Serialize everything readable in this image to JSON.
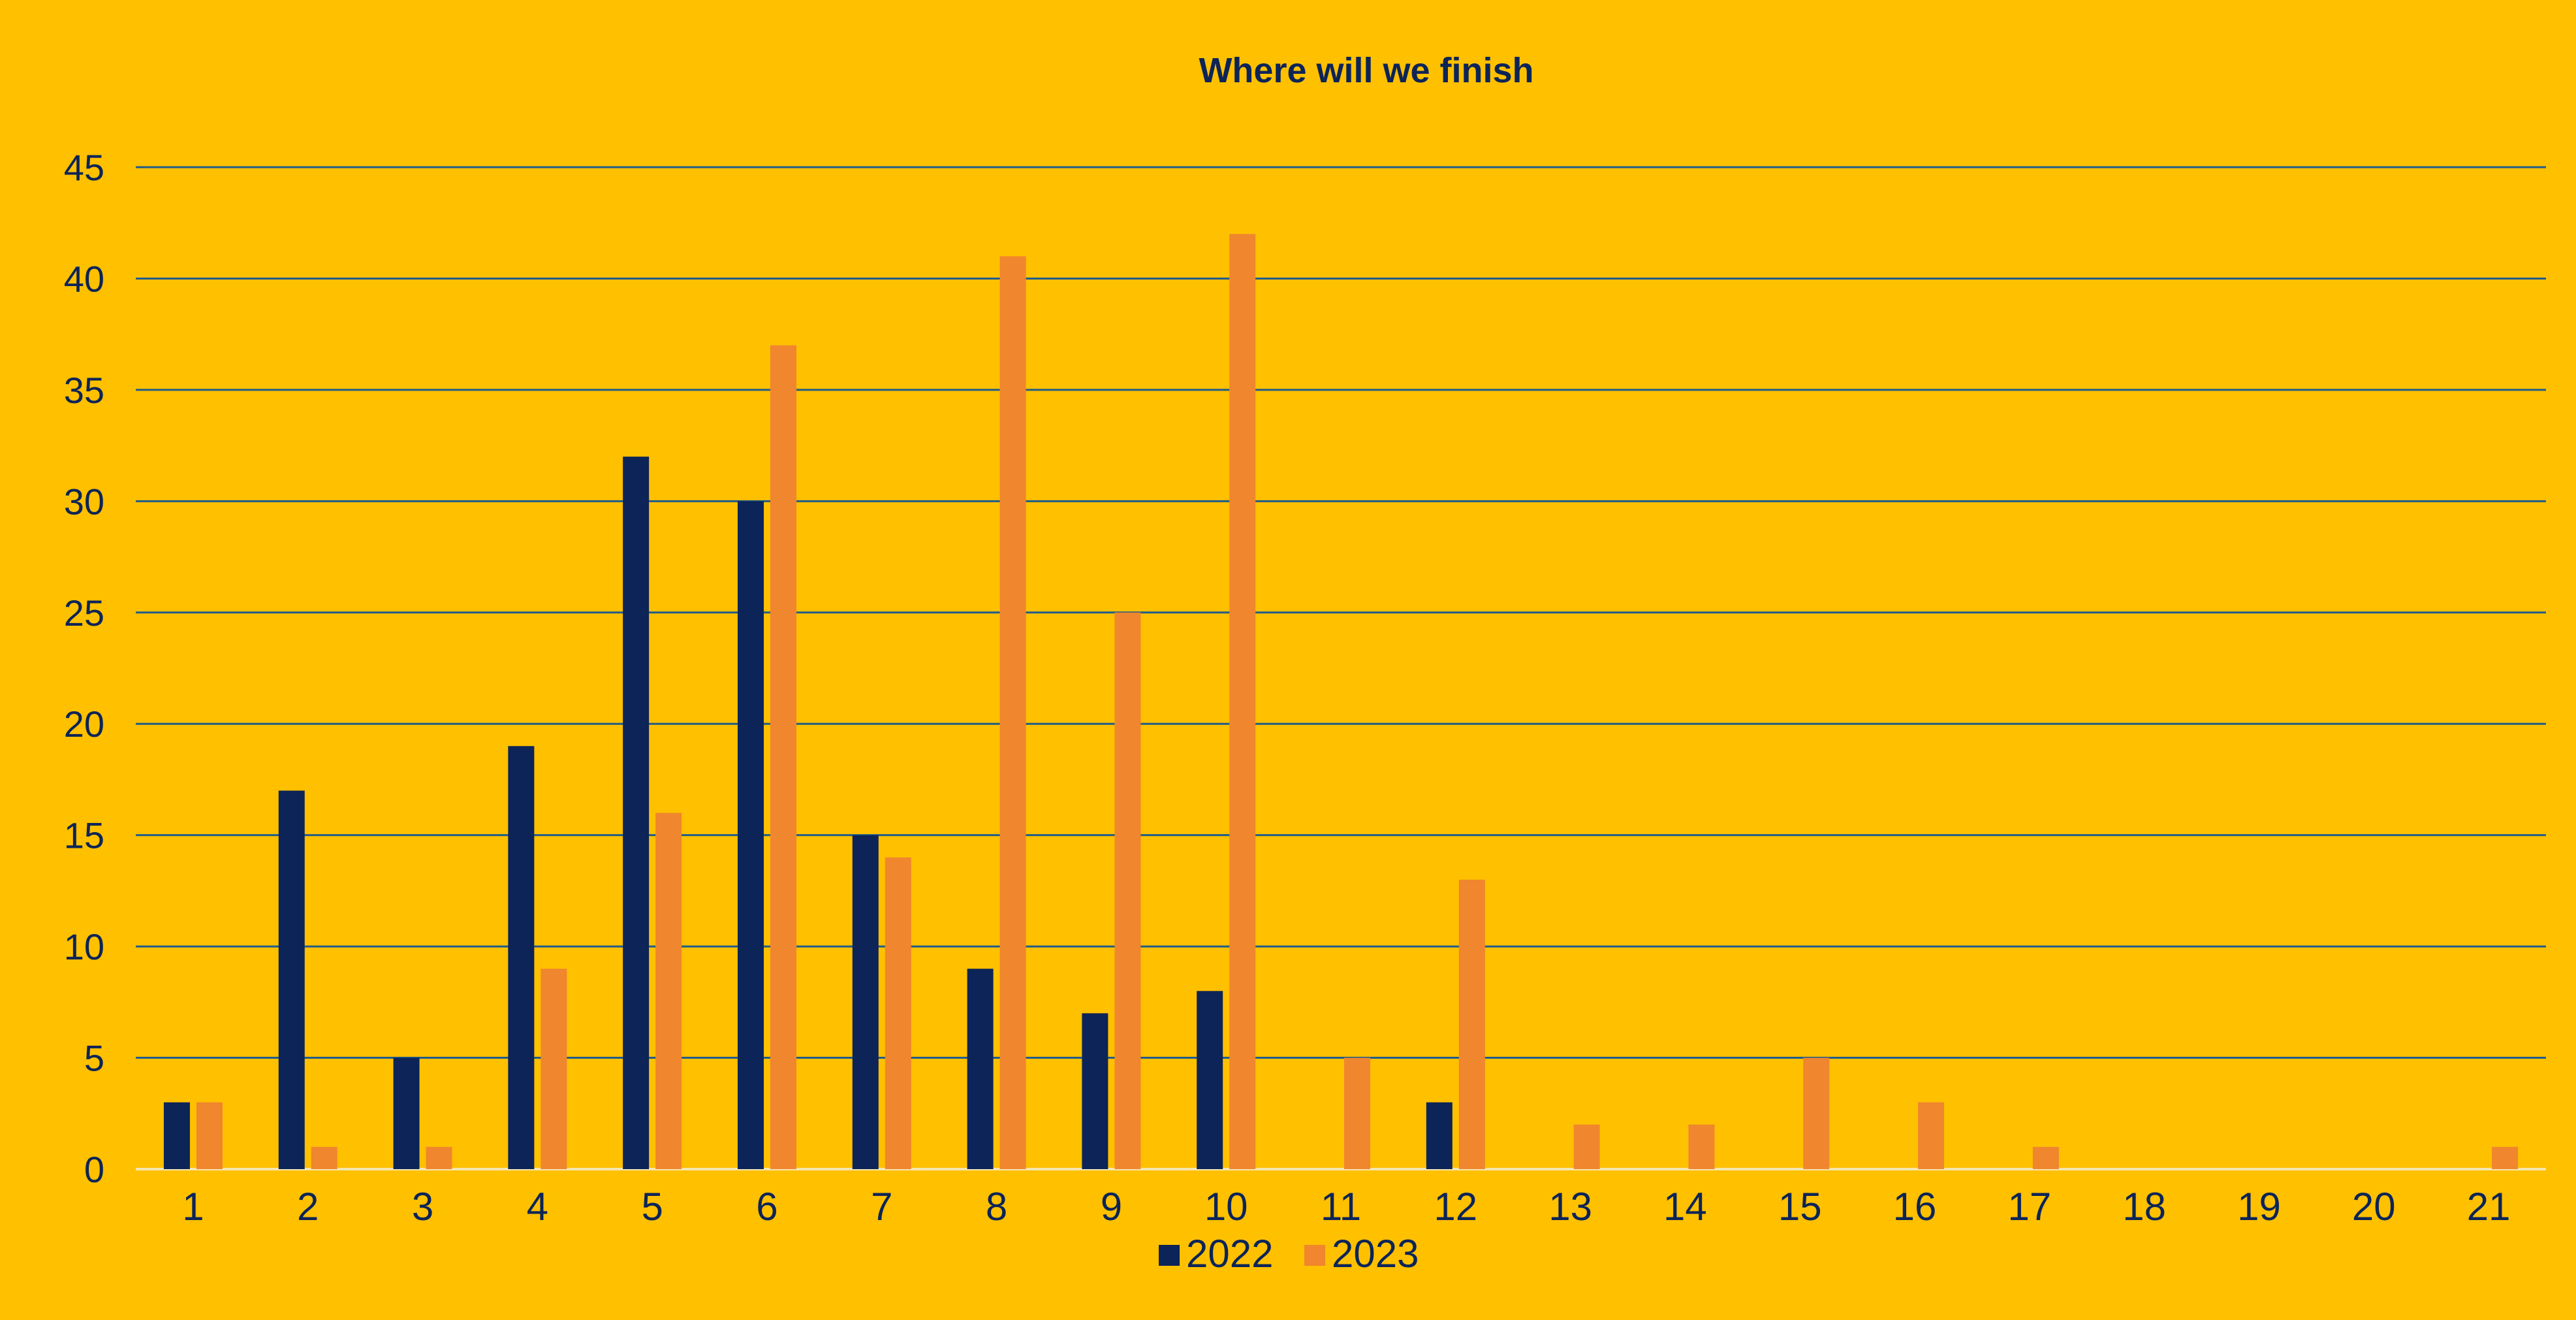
{
  "chart_data": {
    "type": "bar",
    "title": "Where will we finish",
    "xlabel": "",
    "ylabel": "",
    "categories": [
      "1",
      "2",
      "3",
      "4",
      "5",
      "6",
      "7",
      "8",
      "9",
      "10",
      "11",
      "12",
      "13",
      "14",
      "15",
      "16",
      "17",
      "18",
      "19",
      "20",
      "21"
    ],
    "series": [
      {
        "name": "2022",
        "color": "#0C2457",
        "values": [
          3,
          17,
          5,
          19,
          32,
          30,
          15,
          9,
          7,
          8,
          0,
          3,
          0,
          0,
          0,
          0,
          0,
          0,
          0,
          0,
          0
        ]
      },
      {
        "name": "2023",
        "color": "#F0862D",
        "values": [
          3,
          1,
          1,
          9,
          16,
          37,
          14,
          41,
          25,
          42,
          5,
          13,
          2,
          2,
          5,
          3,
          1,
          0,
          0,
          0,
          1
        ]
      }
    ],
    "ylim": [
      0,
      45
    ],
    "yticks": [
      0,
      5,
      10,
      15,
      20,
      25,
      30,
      35,
      40,
      45
    ],
    "grid": true,
    "legend": "bottom-center"
  },
  "colors": {
    "background": "#FFC000",
    "gridline": "#1F5C8A",
    "axis_line": "#F5E6B0",
    "text": "#0C2457"
  }
}
